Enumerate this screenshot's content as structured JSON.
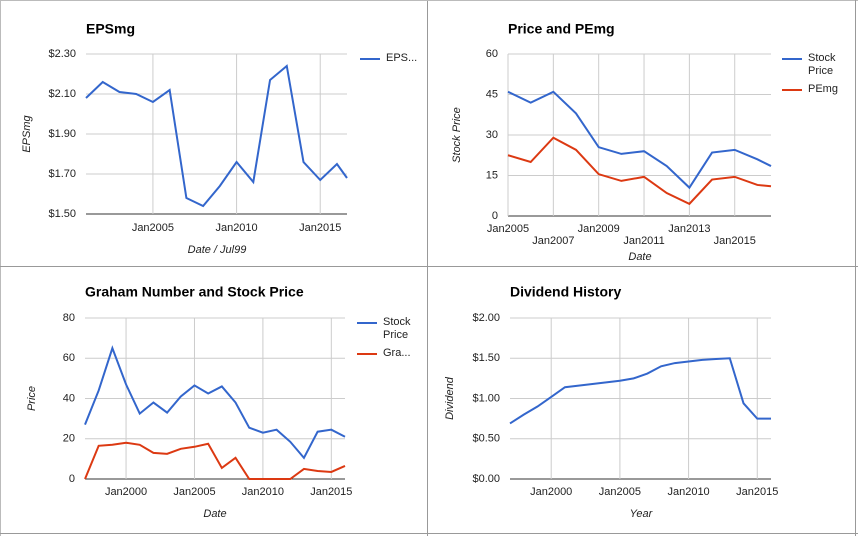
{
  "chart_data": [
    {
      "type": "line",
      "title": "EPSmg",
      "x_label": "Date / Jul99",
      "y_label": "EPSmg",
      "x": [
        2001,
        2002,
        2003,
        2004,
        2005,
        2006,
        2007,
        2008,
        2009,
        2010,
        2011,
        2012,
        2013,
        2014,
        2015,
        2016,
        2016.6
      ],
      "series": [
        {
          "name": "EPS...",
          "color": "#3366cc",
          "values": [
            2.08,
            2.16,
            2.11,
            2.1,
            2.06,
            2.12,
            1.58,
            1.54,
            1.64,
            1.76,
            1.66,
            2.17,
            2.24,
            1.76,
            1.67,
            1.75,
            1.68
          ]
        }
      ],
      "xlim": [
        2001,
        2016.6
      ],
      "xticks": [
        {
          "value": 2005,
          "label": "Jan2005"
        },
        {
          "value": 2010,
          "label": "Jan2010"
        },
        {
          "value": 2015,
          "label": "Jan2015"
        }
      ],
      "ylim": [
        1.5,
        2.3
      ],
      "yticks": [
        {
          "value": 1.5,
          "label": "$1.50"
        },
        {
          "value": 1.7,
          "label": "$1.70"
        },
        {
          "value": 1.9,
          "label": "$1.90"
        },
        {
          "value": 2.1,
          "label": "$2.10"
        },
        {
          "value": 2.3,
          "label": "$2.30"
        }
      ],
      "grid": true,
      "legend": "right"
    },
    {
      "type": "line",
      "title": "Price and PEmg",
      "x_label": "Date",
      "y_label": "Stock Price",
      "x": [
        2005,
        2006,
        2007,
        2008,
        2009,
        2010,
        2011,
        2012,
        2013,
        2014,
        2015,
        2016,
        2016.6
      ],
      "series": [
        {
          "name": "Stock Price",
          "color": "#3366cc",
          "values": [
            46,
            42,
            46,
            38,
            25.5,
            23,
            24,
            18.5,
            10.5,
            23.5,
            24.5,
            21,
            18.5
          ]
        },
        {
          "name": "PEmg",
          "color": "#dc3912",
          "values": [
            22.5,
            20,
            29,
            24.5,
            15.5,
            13,
            14.5,
            8.5,
            4.5,
            13.5,
            14.5,
            11.5,
            11
          ]
        }
      ],
      "xlim": [
        2005,
        2016.6
      ],
      "xticks": [
        {
          "value": 2005,
          "label": "Jan2005"
        },
        {
          "value": 2007,
          "label": "Jan2007"
        },
        {
          "value": 2009,
          "label": "Jan2009"
        },
        {
          "value": 2011,
          "label": "Jan2011"
        },
        {
          "value": 2013,
          "label": "Jan2013"
        },
        {
          "value": 2015,
          "label": "Jan2015"
        }
      ],
      "ylim": [
        0,
        60
      ],
      "yticks": [
        0,
        15,
        30,
        45,
        60
      ],
      "grid": true,
      "legend": "right"
    },
    {
      "type": "line",
      "title": "Graham Number and Stock Price",
      "x_label": "Date",
      "y_label": "Price",
      "x": [
        1997,
        1998,
        1999,
        2000,
        2001,
        2002,
        2003,
        2004,
        2005,
        2006,
        2007,
        2008,
        2009,
        2010,
        2011,
        2012,
        2013,
        2014,
        2015,
        2016
      ],
      "series": [
        {
          "name": "Stock Price",
          "color": "#3366cc",
          "values": [
            27,
            44,
            65,
            47,
            32.5,
            38,
            33,
            41,
            46.5,
            42.5,
            46,
            38,
            25.5,
            23,
            24.5,
            18.5,
            10.5,
            23.5,
            24.5,
            21
          ]
        },
        {
          "name": "Gra...",
          "color": "#dc3912",
          "values": [
            0,
            16.5,
            17,
            18,
            17,
            13,
            12.5,
            15,
            16,
            17.5,
            5.5,
            10.5,
            0,
            0,
            0,
            0,
            5,
            4,
            3.5,
            6.5
          ]
        }
      ],
      "xlim": [
        1997,
        2016
      ],
      "xticks": [
        {
          "value": 2000,
          "label": "Jan2000"
        },
        {
          "value": 2005,
          "label": "Jan2005"
        },
        {
          "value": 2010,
          "label": "Jan2010"
        },
        {
          "value": 2015,
          "label": "Jan2015"
        }
      ],
      "ylim": [
        0,
        80
      ],
      "yticks": [
        0,
        20,
        40,
        60,
        80
      ],
      "grid": true,
      "legend": "right"
    },
    {
      "type": "line",
      "title": "Dividend History",
      "x_label": "Year",
      "y_label": "Dividend",
      "x": [
        1997,
        1998,
        1999,
        2000,
        2001,
        2002,
        2003,
        2004,
        2005,
        2006,
        2007,
        2008,
        2009,
        2010,
        2011,
        2012,
        2013,
        2014,
        2015,
        2016
      ],
      "series": [
        {
          "color": "#3366cc",
          "values": [
            0.69,
            0.8,
            0.9,
            1.02,
            1.14,
            1.16,
            1.18,
            1.2,
            1.22,
            1.25,
            1.31,
            1.4,
            1.44,
            1.46,
            1.48,
            1.49,
            1.5,
            0.94,
            0.75,
            0.75
          ]
        }
      ],
      "xlim": [
        1997,
        2016
      ],
      "xticks": [
        {
          "value": 2000,
          "label": "Jan2000"
        },
        {
          "value": 2005,
          "label": "Jan2005"
        },
        {
          "value": 2010,
          "label": "Jan2010"
        },
        {
          "value": 2015,
          "label": "Jan2015"
        }
      ],
      "ylim": [
        0,
        2
      ],
      "yticks": [
        {
          "value": 0,
          "label": "$0.00"
        },
        {
          "value": 0.5,
          "label": "$0.50"
        },
        {
          "value": 1,
          "label": "$1.00"
        },
        {
          "value": 1.5,
          "label": "$1.50"
        },
        {
          "value": 2,
          "label": "$2.00"
        }
      ],
      "grid": true
    }
  ]
}
